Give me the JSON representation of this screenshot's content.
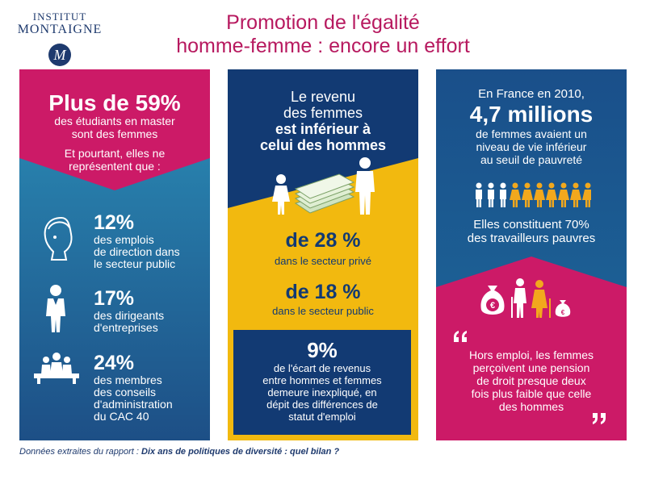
{
  "logo": {
    "line1": "INSTITUT",
    "line2": "MONTAIGNE",
    "mark": "M"
  },
  "title": {
    "line1": "Promotion de l'égalité",
    "line2": "homme-femme : encore un effort"
  },
  "col1": {
    "headline": "Plus de 59%",
    "sub1": "des étudiants en master",
    "sub2": "sont des femmes",
    "intro1": "Et pourtant, elles ne",
    "intro2": "représentent que :",
    "stats": [
      {
        "pct": "12%",
        "lines": [
          "des emplois",
          "de direction dans",
          "le secteur public"
        ],
        "icon": "woman-profile-icon"
      },
      {
        "pct": "17%",
        "lines": [
          "des dirigeants",
          "d'entreprises"
        ],
        "icon": "businesswoman-icon"
      },
      {
        "pct": "24%",
        "lines": [
          "des membres",
          "des conseils",
          "d'administration",
          "du CAC 40"
        ],
        "icon": "boardroom-icon"
      }
    ]
  },
  "col2": {
    "l1": "Le revenu",
    "l2": "des femmes",
    "l3": "est inférieur à",
    "l4": "celui des hommes",
    "s1": "de 28 %",
    "s1sub": "dans le secteur privé",
    "s2": "de 18 %",
    "s2sub": "dans le secteur public",
    "box": {
      "pct": "9%",
      "lines": [
        "de l'écart de revenus",
        "entre hommes et femmes",
        "demeure inexpliqué, en",
        "dépit des différences de",
        "statut d'emploi"
      ]
    }
  },
  "col3": {
    "l1": "En France en 2010,",
    "big": "4,7 millions",
    "lines": [
      "de femmes avaient un",
      "niveau de vie inférieur",
      "au seuil de pauvreté"
    ],
    "s1": "Elles constituent 70%",
    "s2": "des travailleurs pauvres",
    "quote": [
      "Hors emploi, les femmes",
      "perçoivent une pension",
      "de droit presque deux",
      "fois plus faible que celle",
      "des hommes"
    ],
    "euro": "€"
  },
  "footer": {
    "prefix": "Données extraites du rapport : ",
    "report": "Dix ans de politiques de diversité : quel bilan ?"
  },
  "colors": {
    "magenta": "#cc1a67",
    "blue": "#1d6a9b",
    "navy": "#123a73",
    "yellow": "#f2b90f",
    "orange": "#f2a81d"
  }
}
